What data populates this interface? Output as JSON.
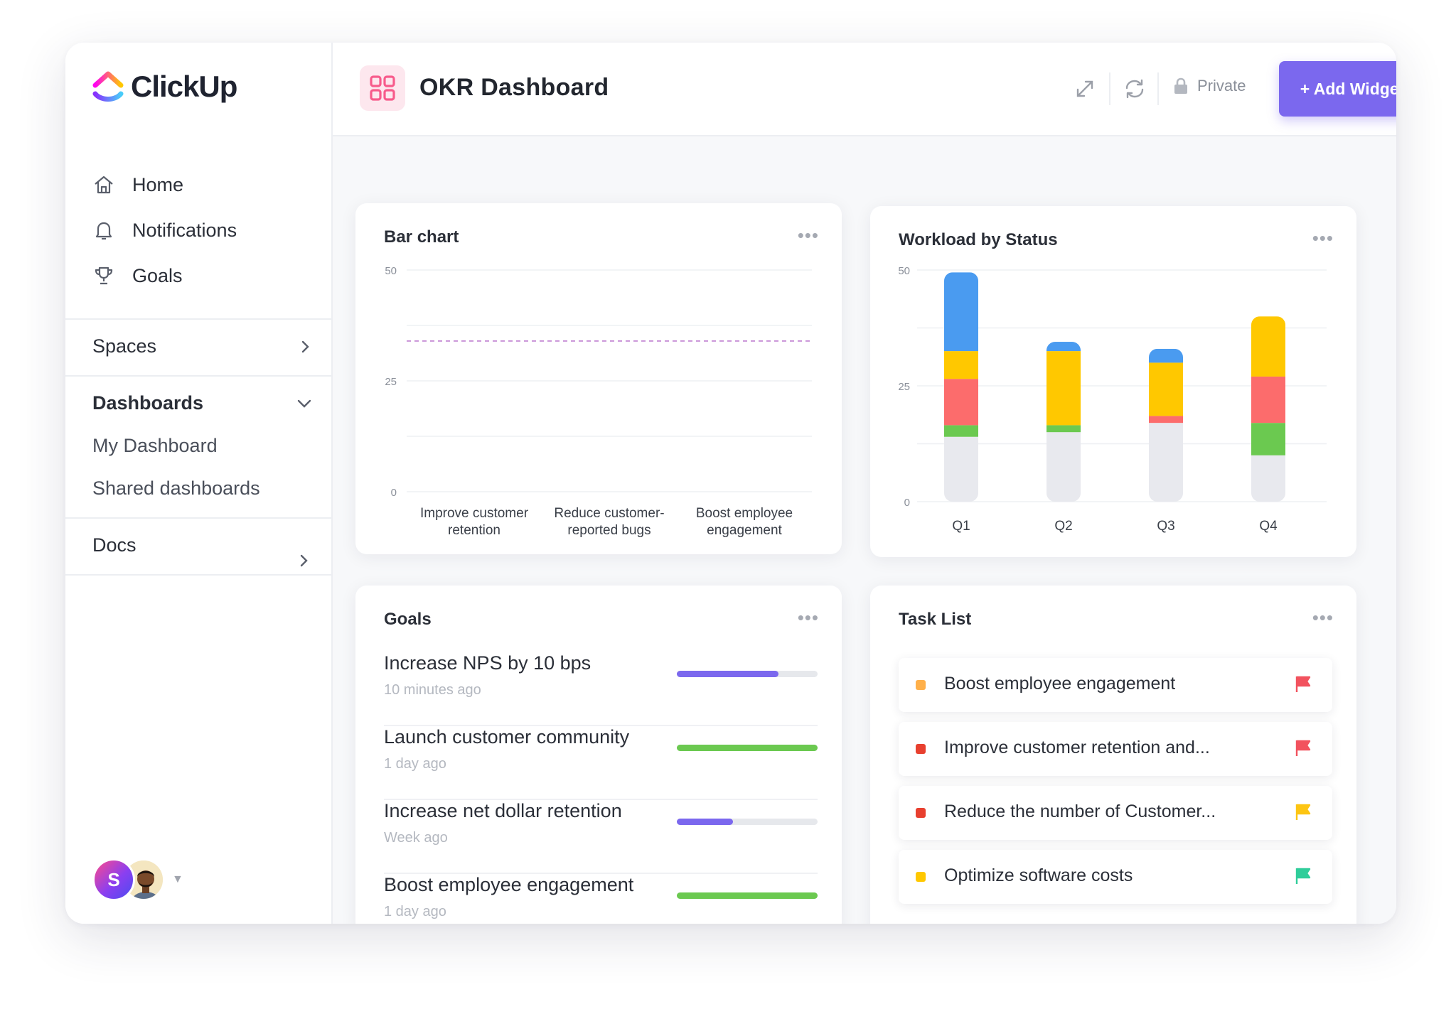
{
  "app": {
    "brand": "ClickUp"
  },
  "sidebar": {
    "nav": [
      {
        "label": "Home",
        "icon": "home-icon"
      },
      {
        "label": "Notifications",
        "icon": "bell-icon"
      },
      {
        "label": "Goals",
        "icon": "trophy-icon"
      }
    ],
    "spaces_label": "Spaces",
    "dashboards_label": "Dashboards",
    "dashboards_items": [
      {
        "label": "My Dashboard"
      },
      {
        "label": "Shared dashboards"
      }
    ],
    "docs_label": "Docs",
    "avatar_initial": "S"
  },
  "header": {
    "title": "OKR Dashboard",
    "private_label": "Private",
    "add_widget_label": "+ Add Widget"
  },
  "colors": {
    "accent": "#7b68ee",
    "blue": "#4a9bf0",
    "yellow": "#ffc800",
    "red": "#fc6c6c",
    "green": "#6bc950",
    "gray": "#e8e9ee",
    "orange": "#ffb04a",
    "task_red": "#e8402f",
    "flag_red": "#f2525e",
    "flag_yellow": "#fdc513",
    "flag_green": "#2fcd9a"
  },
  "bar_card": {
    "title": "Bar chart",
    "more": "•••"
  },
  "workload_card": {
    "title": "Workload by Status",
    "more": "•••"
  },
  "chart_data": [
    {
      "type": "bar",
      "title": "Bar chart",
      "categories": [
        "Improve customer retention",
        "Reduce customer-reported bugs",
        "Boost employee engagement"
      ],
      "category_lines": [
        [
          "Improve customer",
          "retention"
        ],
        [
          "Reduce customer-",
          "reported bugs"
        ],
        [
          "Boost employee",
          "engagement"
        ]
      ],
      "yticks": [
        "50",
        "25",
        "0"
      ],
      "ylim": [
        0,
        50
      ],
      "target_line": 34,
      "series": [],
      "grid": true
    },
    {
      "type": "bar",
      "stacked": true,
      "title": "Workload by Status",
      "categories": [
        "Q1",
        "Q2",
        "Q3",
        "Q4"
      ],
      "yticks": [
        "50",
        "25",
        "0"
      ],
      "ylim": [
        0,
        50
      ],
      "series": [
        {
          "color": "#e8e9ee",
          "values": [
            14,
            15,
            17,
            10
          ]
        },
        {
          "color": "#6bc950",
          "values": [
            2.5,
            1.5,
            0,
            7
          ]
        },
        {
          "color": "#fc6c6c",
          "values": [
            10,
            0,
            1.5,
            10
          ]
        },
        {
          "color": "#ffc800",
          "values": [
            6,
            16,
            11.5,
            13
          ]
        },
        {
          "color": "#4a9bf0",
          "values": [
            17,
            2,
            3,
            0
          ]
        }
      ],
      "grid": true
    }
  ],
  "goals_card": {
    "title": "Goals",
    "more": "•••",
    "items": [
      {
        "name": "Increase NPS by 10 bps",
        "time": "10 minutes ago",
        "progress": 0.72,
        "color": "#7b68ee"
      },
      {
        "name": "Launch customer community",
        "time": "1 day ago",
        "progress": 1.0,
        "color": "#6bc950"
      },
      {
        "name": "Increase net dollar retention",
        "time": "Week ago",
        "progress": 0.4,
        "color": "#7b68ee"
      },
      {
        "name": "Boost employee engagement",
        "time": "1 day ago",
        "progress": 1.0,
        "color": "#6bc950"
      }
    ]
  },
  "tasks_card": {
    "title": "Task List",
    "more": "•••",
    "items": [
      {
        "name": "Boost employee engagement",
        "dot": "#ffb04a",
        "flag": "#f2525e"
      },
      {
        "name": "Improve customer retention and...",
        "dot": "#e8402f",
        "flag": "#f2525e"
      },
      {
        "name": "Reduce the number of Customer...",
        "dot": "#e8402f",
        "flag": "#fdc513"
      },
      {
        "name": "Optimize software costs",
        "dot": "#ffc800",
        "flag": "#2fcd9a"
      }
    ]
  }
}
